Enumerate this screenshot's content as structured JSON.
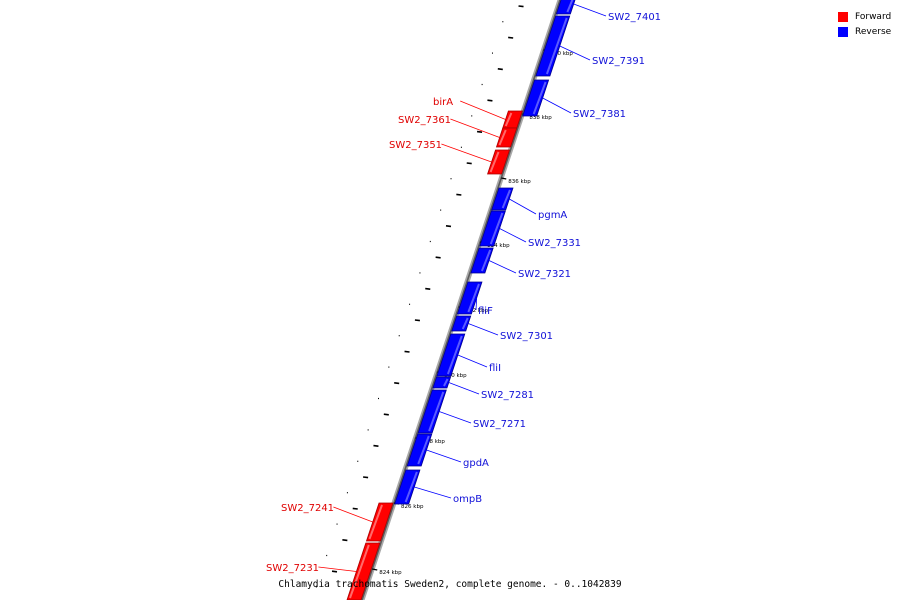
{
  "legend": {
    "forward": {
      "label": "Forward",
      "color": "#ff0000"
    },
    "reverse": {
      "label": "Reverse",
      "color": "#0000ff"
    }
  },
  "caption": "Chlamydia trachomatis Sweden2, complete genome. - 0..1042839",
  "scale_labels": [
    "824 kbp",
    "826 kbp",
    "828 kbp",
    "830 kbp",
    "832 kbp",
    "834 kbp",
    "836 kbp",
    "838 kbp",
    "840 kbp"
  ],
  "genes": [
    {
      "name": "SW2_7401",
      "strand": "reverse"
    },
    {
      "name": "SW2_7391",
      "strand": "reverse"
    },
    {
      "name": "SW2_7381",
      "strand": "reverse"
    },
    {
      "name": "birA",
      "strand": "forward"
    },
    {
      "name": "SW2_7361",
      "strand": "forward"
    },
    {
      "name": "SW2_7351",
      "strand": "forward"
    },
    {
      "name": "pgmA",
      "strand": "reverse"
    },
    {
      "name": "SW2_7331",
      "strand": "reverse"
    },
    {
      "name": "SW2_7321",
      "strand": "reverse"
    },
    {
      "name": "fliF",
      "strand": "reverse"
    },
    {
      "name": "SW2_7301",
      "strand": "reverse"
    },
    {
      "name": "fliI",
      "strand": "reverse"
    },
    {
      "name": "SW2_7281",
      "strand": "reverse"
    },
    {
      "name": "SW2_7271",
      "strand": "reverse"
    },
    {
      "name": "gpdA",
      "strand": "reverse"
    },
    {
      "name": "ompB",
      "strand": "reverse"
    },
    {
      "name": "SW2_7241",
      "strand": "forward"
    },
    {
      "name": "SW2_7231",
      "strand": "forward"
    }
  ]
}
